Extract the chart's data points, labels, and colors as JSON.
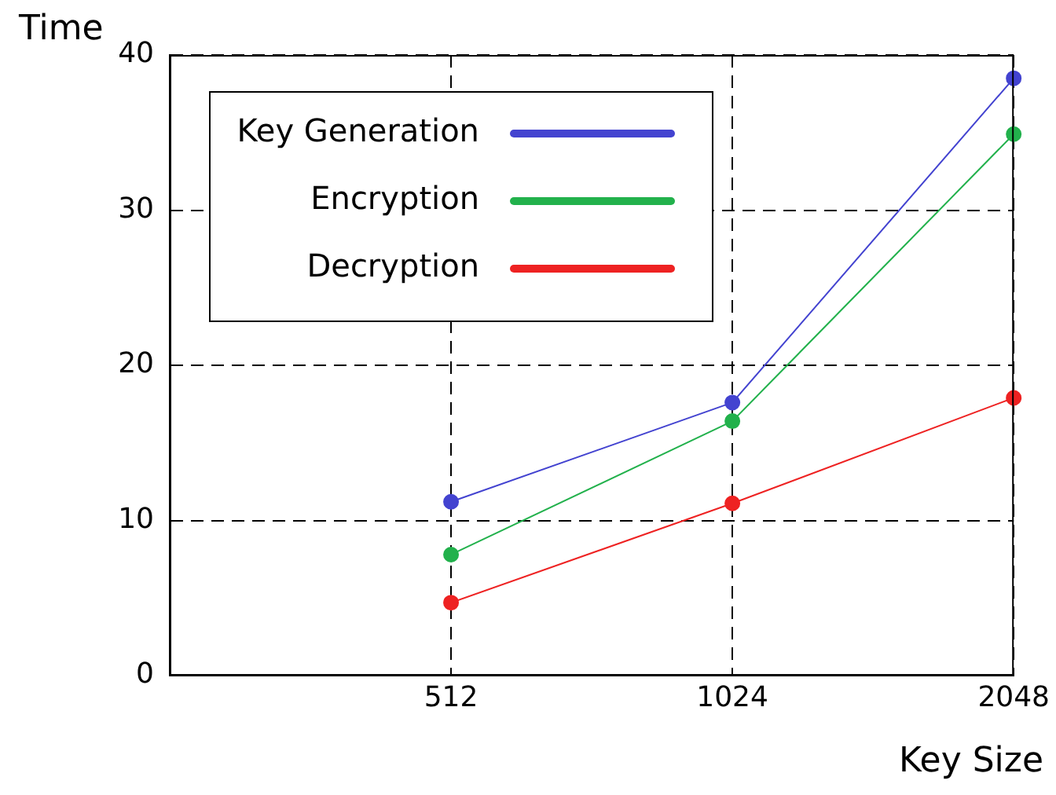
{
  "chart_data": {
    "type": "line",
    "xlabel": "Key Size",
    "ylabel": "Time",
    "categories": [
      null,
      "512",
      "1024",
      "2048"
    ],
    "series": [
      {
        "name": "Key Generation",
        "color": "#4343d0",
        "values": [
          null,
          11.2,
          17.6,
          38.5
        ]
      },
      {
        "name": "Encryption",
        "color": "#22b14c",
        "values": [
          null,
          7.8,
          16.4,
          34.9
        ]
      },
      {
        "name": "Decryption",
        "color": "#ee2222",
        "values": [
          null,
          4.7,
          11.1,
          17.9
        ]
      }
    ],
    "ylim": [
      0,
      40
    ],
    "yticks": [
      0,
      10,
      20,
      30,
      40
    ],
    "grid": true,
    "legend": "top left",
    "marker": "circle",
    "line_style": "solid"
  }
}
